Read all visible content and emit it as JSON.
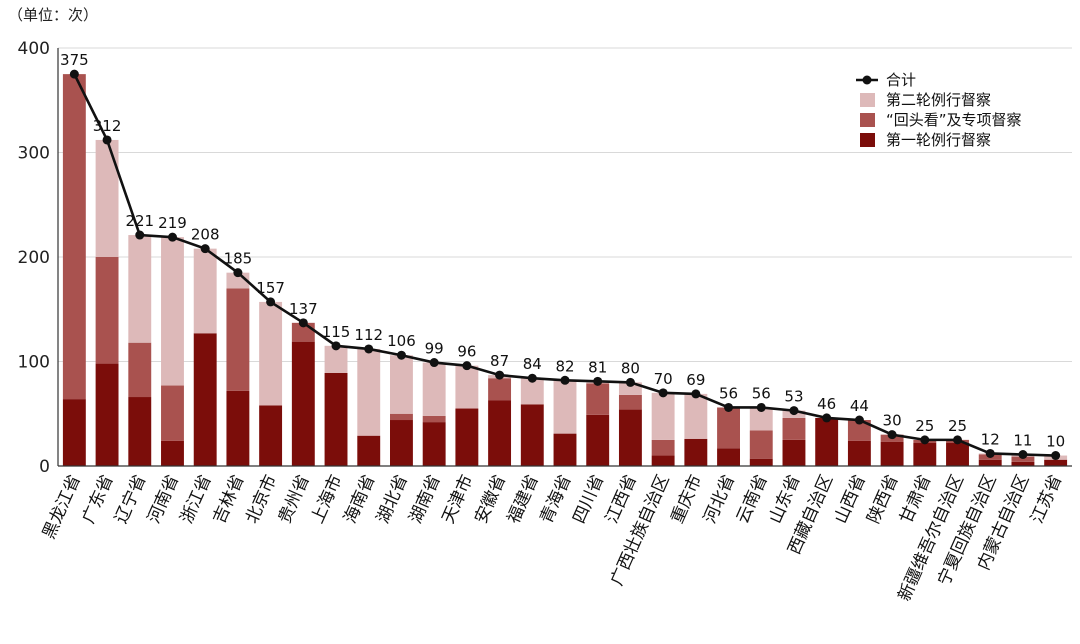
{
  "unit_label": "（单位：次）",
  "colors": {
    "total": "#111111",
    "second_round": "#ddb9b9",
    "lookback": "#a9524f",
    "first_round": "#7b0d0a",
    "grid": "#d9d9d9",
    "axis": "#333333"
  },
  "chart_data": {
    "type": "bar",
    "stacked": true,
    "ylim": [
      0,
      400
    ],
    "yticks": [
      0,
      100,
      200,
      300,
      400
    ],
    "grid": true,
    "legend_position": "top-right",
    "categories": [
      "黑龙江省",
      "广东省",
      "辽宁省",
      "河南省",
      "浙江省",
      "吉林省",
      "北京市",
      "贵州省",
      "上海市",
      "海南省",
      "湖北省",
      "湖南省",
      "天津市",
      "安徽省",
      "福建省",
      "青海省",
      "四川省",
      "江西省",
      "广西壮族自治区",
      "重庆市",
      "河北省",
      "云南省",
      "山东省",
      "西藏自治区",
      "山西省",
      "陕西省",
      "甘肃省",
      "新疆维吾尔自治区",
      "宁夏回族自治区",
      "内蒙古自治区",
      "江苏省"
    ],
    "series": [
      {
        "name": "第一轮例行督察",
        "values": [
          64,
          98,
          66,
          24,
          127,
          72,
          58,
          119,
          89,
          29,
          44,
          42,
          55,
          63,
          59,
          31,
          49,
          54,
          10,
          26,
          17,
          7,
          25,
          46,
          24,
          23,
          22,
          22,
          6,
          4,
          6
        ]
      },
      {
        "name": "“回头看”及专项督察",
        "values": [
          311,
          102,
          52,
          53,
          0,
          98,
          0,
          18,
          0,
          0,
          6,
          6,
          0,
          21,
          0,
          0,
          30,
          14,
          15,
          0,
          39,
          27,
          21,
          0,
          20,
          7,
          3,
          3,
          5,
          5,
          0
        ]
      },
      {
        "name": "第二轮例行督察",
        "values": [
          0,
          112,
          103,
          142,
          81,
          15,
          99,
          0,
          26,
          83,
          56,
          51,
          41,
          3,
          25,
          51,
          2,
          12,
          45,
          43,
          0,
          22,
          7,
          0,
          0,
          0,
          0,
          0,
          1,
          2,
          4
        ]
      }
    ],
    "line": {
      "name": "合计",
      "values": [
        375,
        312,
        221,
        219,
        208,
        185,
        157,
        137,
        115,
        112,
        106,
        99,
        96,
        87,
        84,
        82,
        81,
        80,
        70,
        69,
        56,
        56,
        53,
        46,
        44,
        30,
        25,
        25,
        12,
        11,
        10
      ]
    }
  }
}
